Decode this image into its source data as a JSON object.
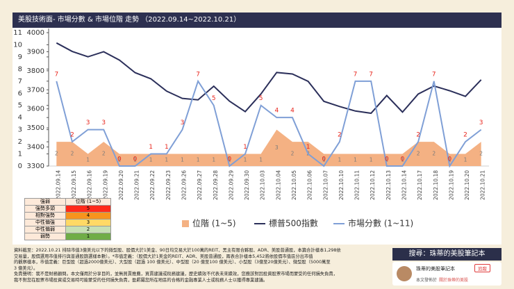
{
  "chart_data": {
    "type": "line",
    "title": "美股技術面- 市場分數 & 市場位階 走勢 （2022.09.14~2022.10.21）",
    "categories": [
      "2022.09.14",
      "2022.09.15",
      "2022.09.16",
      "2022.09.19",
      "2022.09.20",
      "2022.09.21",
      "2022.09.22",
      "2022.09.23",
      "2022.09.26",
      "2022.09.27",
      "2022.09.28",
      "2022.09.29",
      "2022.09.30",
      "2022.10.03",
      "2022.10.04",
      "2022.10.05",
      "2022.10.06",
      "2022.10.07",
      "2022.10.10",
      "2022.10.11",
      "2022.10.12",
      "2022.10.13",
      "2022.10.14",
      "2022.10.17",
      "2022.10.18",
      "2022.10.19",
      "2022.10.20",
      "2022.10.21"
    ],
    "series": [
      {
        "name": "位階 (1~5)",
        "type": "area",
        "color": "#f4b183",
        "label_color": "#7a7a7a",
        "values": [
          2,
          2,
          1,
          2,
          1,
          1,
          1,
          1,
          1,
          1,
          1,
          1,
          1,
          1,
          3,
          2,
          2,
          1,
          1,
          1,
          1,
          1,
          1,
          2,
          2,
          1,
          1,
          2
        ]
      },
      {
        "name": "標普500指數",
        "type": "line",
        "axis": "y2",
        "color": "#2b2f5a",
        "values": [
          3946.01,
          3901.35,
          3873.33,
          3899.89,
          3855.93,
          3789.93,
          3757.99,
          3693.23,
          3655.04,
          3647.29,
          3719.04,
          3640.47,
          3585.62,
          3678.43,
          3790.93,
          3783.28,
          3744.52,
          3639.66,
          3612.39,
          3588.84,
          3577.03,
          3669.91,
          3583.07,
          3677.95,
          3719.98,
          3695.16,
          3665.78,
          3752.75
        ]
      },
      {
        "name": "市場分數 (1~11)",
        "type": "line",
        "color": "#7f9fd6",
        "label_color": "#e8251c",
        "values": [
          7,
          2,
          3,
          3,
          0,
          0,
          1,
          1,
          3,
          7,
          5,
          0,
          1,
          5,
          4,
          4,
          1,
          0,
          2,
          7,
          7,
          0,
          0,
          2,
          7,
          0,
          2,
          3
        ]
      }
    ],
    "ylim": [
      0,
      11
    ],
    "yticks": [
      0,
      1,
      2,
      3,
      4,
      5,
      6,
      7,
      8,
      9,
      10,
      11
    ],
    "y2lim": [
      3300,
      4000
    ],
    "y2ticks": [
      3300,
      3400,
      3500,
      3600,
      3700,
      3800,
      3900,
      4000
    ],
    "grid": false,
    "legend": "bottom"
  },
  "legend_table": {
    "header": [
      "強弱",
      "位階 (1~5)"
    ],
    "rows": [
      [
        "強勢多頭",
        5
      ],
      [
        "相對強勢",
        4
      ],
      [
        "中性偏強",
        3
      ],
      [
        "中性偏弱",
        2
      ],
      [
        "弱勢",
        1
      ]
    ]
  },
  "notes": [
    "資料截至：2022.10.21 排除市值3億美元以下的微型股、股價大於1美金、90日均交易大於100萬的REIT、黑主有限合夥股、ADR、美股普通股，本篇合計樣本1,298依",
    "交易量，股價選用市值排行與普通股篩選樣本數）。*市值定義：（股價大於1美金的REIT、ADR、美股普通股，兩表合計樣本5,452將依股價市值區分出市值",
    "的觀察樣本，市值定義：巨型股（超過2000億美元）、大型股（超過 100 億美元）、中型股（20 億至100 億美元）、小型股（3億至20億美元）、微型股（5000萬至",
    "3 億美元）。",
    "免責聲明：我不是財務顧問。本文僅用於分享目的，並無買賣推薦，買賣建議或稅務建議，歷史績效不代表未來績效，您應該對因投資股票市場而蒙受的任何損失負責，",
    "我不對您在股票市場投資或交易時可能蒙受的任何損失負責，盈虧屬您所在地區的合格的金融專業人士或稅務人士以獲得專業建議。"
  ],
  "search_banner": "搜尋：珠蒂的美股筆記本",
  "card": {
    "name": "珠蒂的美股筆記本",
    "button": "追蹤",
    "published_in": "本文發佈於",
    "link": "關於珠蒂的美股"
  }
}
